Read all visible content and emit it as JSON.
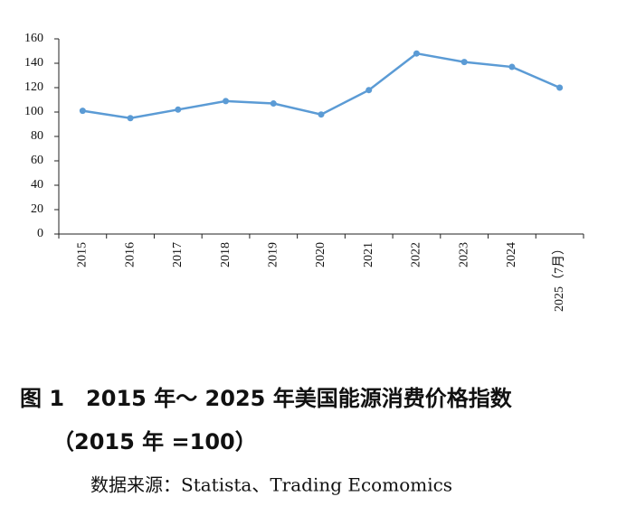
{
  "chart_data": {
    "type": "line",
    "title": "图 1　2015 年～ 2025 年美国能源消费价格指数",
    "subtitle": "（2015 年 =100）",
    "source": "数据来源：Statista、Trading Ecomomics",
    "categories": [
      "2015",
      "2016",
      "2017",
      "2018",
      "2019",
      "2020",
      "2021",
      "2022",
      "2023",
      "2024",
      "2025（7月）"
    ],
    "values": [
      101,
      95,
      102,
      109,
      107,
      98,
      118,
      148,
      141,
      137,
      120
    ],
    "color": "#5b9bd5",
    "ylim": [
      0,
      160
    ],
    "yticks": [
      0,
      20,
      40,
      60,
      80,
      100,
      120,
      140,
      160
    ],
    "grid": false
  }
}
